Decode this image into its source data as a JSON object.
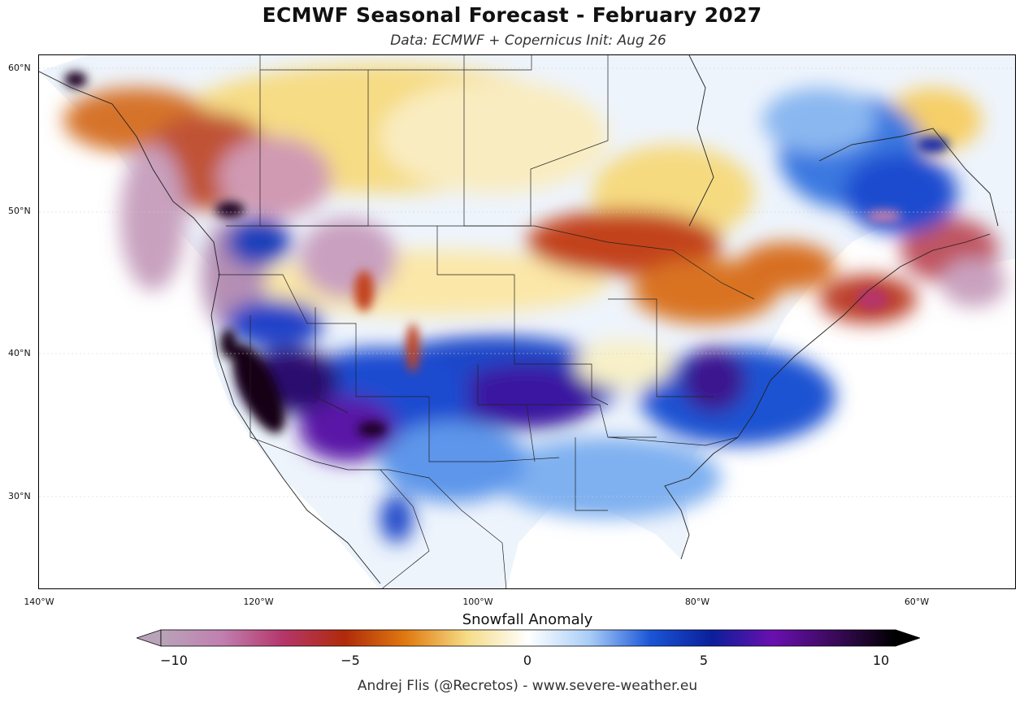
{
  "header": {
    "title": "ECMWF Seasonal Forecast - February 2027",
    "subtitle": "Data: ECMWF + Copernicus   Init: Aug 26"
  },
  "map": {
    "lat_labels": [
      "60°N",
      "50°N",
      "40°N",
      "30°N"
    ],
    "lon_labels": [
      "140°W",
      "120°W",
      "100°W",
      "80°W",
      "60°W"
    ]
  },
  "colorbar": {
    "title": "Snowfall Anomaly",
    "ticks": [
      "−10",
      "−5",
      "0",
      "5",
      "10"
    ],
    "min": -10,
    "max": 10,
    "colors": [
      "#b9a3b9",
      "#c07fb0",
      "#b5366a",
      "#b02a0a",
      "#e07a10",
      "#f5dc86",
      "#ffffff",
      "#a9cdf7",
      "#1a55d6",
      "#0b1f9a",
      "#6a0fb0",
      "#3a0a5a",
      "#000000"
    ]
  },
  "footer": {
    "credit": "Andrej Flis (@Recretos) - www.severe-weather.eu"
  }
}
